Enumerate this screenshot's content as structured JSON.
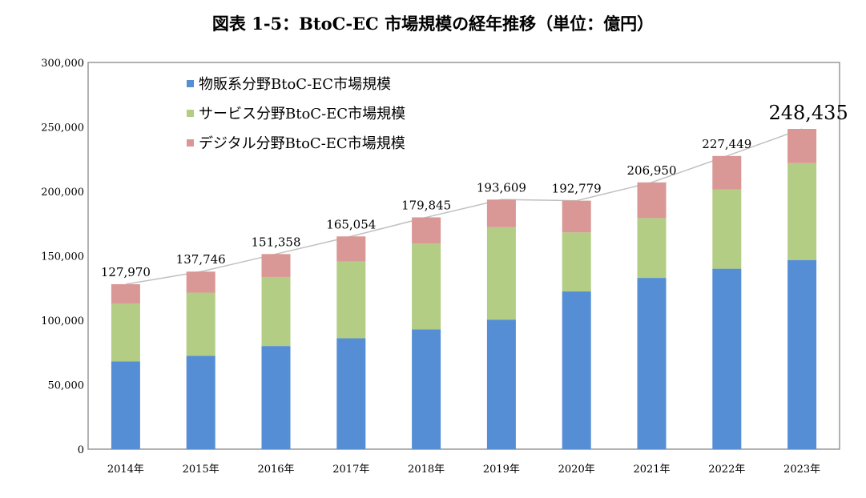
{
  "chart_data": {
    "type": "bar",
    "stacked": true,
    "title": "図表 1-5：BtoC-EC 市場規模の経年推移（単位：億円）",
    "xlabel": "",
    "ylabel": "",
    "ylim": [
      0,
      300000
    ],
    "yticks": [
      "0",
      "50,000",
      "100,000",
      "150,000",
      "200,000",
      "250,000",
      "300,000"
    ],
    "categories": [
      "2014年",
      "2015年",
      "2016年",
      "2017年",
      "2018年",
      "2019年",
      "2020年",
      "2021年",
      "2022年",
      "2023年"
    ],
    "series": [
      {
        "name": "物販系分野BtoC-EC市場規模",
        "color": "#558ed5",
        "values": [
          68043,
          72398,
          80043,
          86008,
          92992,
          100515,
          122333,
          132865,
          139997,
          146760
        ]
      },
      {
        "name": "サービス分野BtoC-EC市場規模",
        "color": "#b3cd85",
        "values": [
          44816,
          49014,
          53532,
          59568,
          66471,
          71672,
          45832,
          46424,
          61477,
          75169
        ]
      },
      {
        "name": "デジタル分野BtoC-EC市場規模",
        "color": "#d99795",
        "values": [
          15111,
          16334,
          17782,
          19478,
          20382,
          21422,
          24614,
          27661,
          25974,
          26506
        ]
      }
    ],
    "totals": [
      "127,970",
      "137,746",
      "151,358",
      "165,054",
      "179,845",
      "193,609",
      "192,779",
      "206,950",
      "227,449",
      "248,435"
    ],
    "total_line_color": "#c0c0c0",
    "grid": false,
    "legend": "top-left"
  }
}
